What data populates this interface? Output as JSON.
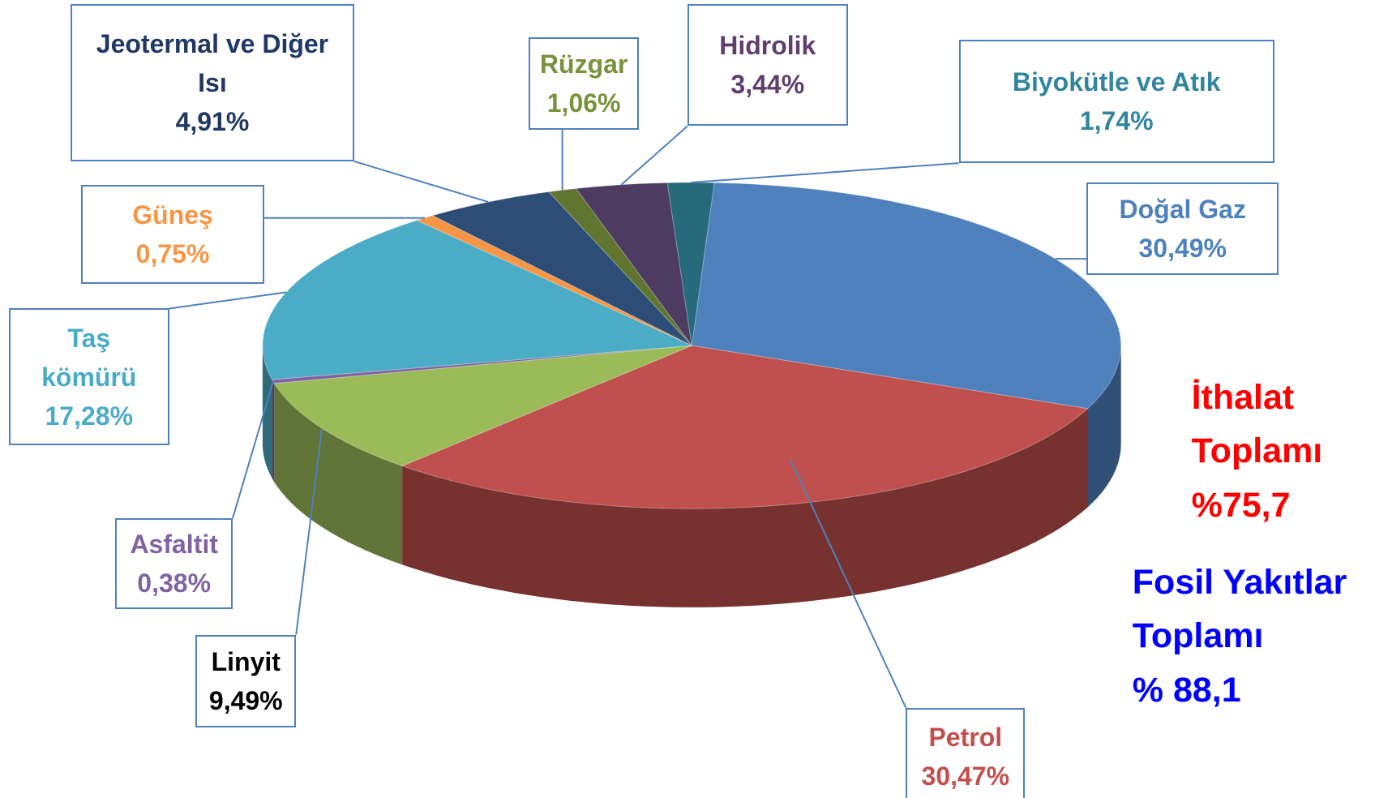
{
  "chart_data": {
    "type": "pie3d",
    "categories": [
      "Doğal Gaz",
      "Petrol",
      "Linyit",
      "Asfaltit",
      "Taş kömürü",
      "Güneş",
      "Jeotermal ve Diğer Isı",
      "Rüzgar",
      "Hidrolik",
      "Biyokütle ve Atık"
    ],
    "values": [
      30.49,
      30.47,
      9.49,
      0.38,
      17.28,
      0.75,
      4.91,
      1.06,
      3.44,
      1.74
    ],
    "value_labels": [
      "30,49%",
      "30,47%",
      "9,49%",
      "0,38%",
      "17,28%",
      "0,75%",
      "4,91%",
      "1,06%",
      "3,44%",
      "1,74%"
    ],
    "colors": [
      "#4f81bd",
      "#c0504d",
      "#9bbb59",
      "#8064a2",
      "#4bacc6",
      "#f79646",
      "#2c4d75",
      "#5f7530",
      "#4d3b62",
      "#276a7c"
    ],
    "label_colors": [
      "#4f81bd",
      "#c0504d",
      "#000000",
      "#8064a2",
      "#4bacc6",
      "#f79646",
      "#1f3864",
      "#77933c",
      "#5f3e6e",
      "#31859c"
    ],
    "annotations": [
      {
        "lines": [
          "İthalat",
          "Toplamı",
          "%75,7"
        ],
        "color": "#ff0000"
      },
      {
        "lines": [
          "Fosil Yakıtlar",
          "Toplamı",
          "% 88,1"
        ],
        "color": "#0000ff"
      }
    ]
  }
}
